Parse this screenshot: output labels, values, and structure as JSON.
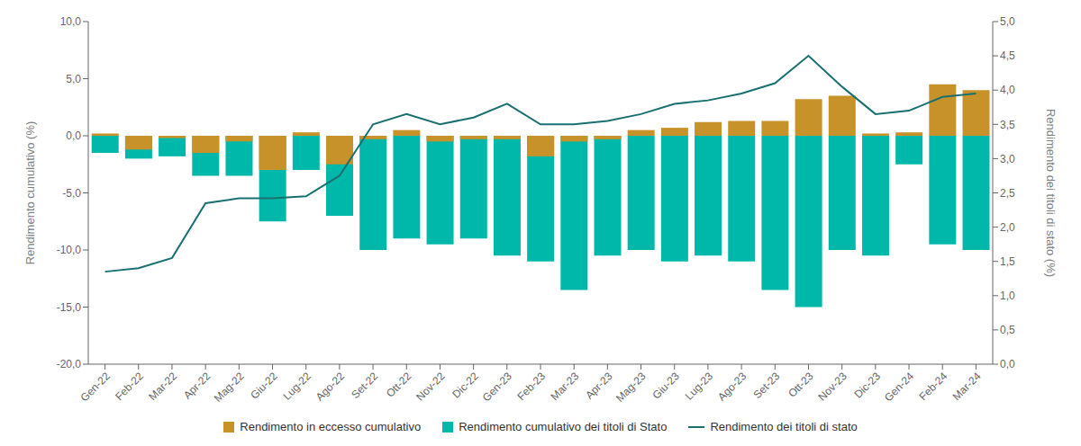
{
  "chart_data": {
    "type": "bar",
    "categories": [
      "Gen-22",
      "Feb-22",
      "Mar-22",
      "Apr-22",
      "Mag-22",
      "Giu-22",
      "Lug-22",
      "Ago-22",
      "Set-22",
      "Ott-22",
      "Nov-22",
      "Dic-22",
      "Gen-23",
      "Feb-23",
      "Mar-23",
      "Apr-23",
      "Mag-23",
      "Giu-23",
      "Lug-23",
      "Ago-23",
      "Set-23",
      "Ott-23",
      "Nov-23",
      "Dic-23",
      "Gen-24",
      "Feb-24",
      "Mar-24"
    ],
    "series": [
      {
        "name": "Rendimento in eccesso cumulativo",
        "type": "bar",
        "color": "#C8922A",
        "values": [
          0.2,
          -1.2,
          -0.2,
          -1.5,
          -0.5,
          -3.0,
          0.3,
          -2.5,
          -0.3,
          0.5,
          -0.5,
          -0.3,
          -0.3,
          -1.8,
          -0.5,
          -0.3,
          0.5,
          0.7,
          1.2,
          1.3,
          1.3,
          3.2,
          3.5,
          0.2,
          0.3,
          4.5,
          4.0
        ]
      },
      {
        "name": "Rendimento cumulativo dei titoli di Stato",
        "type": "bar",
        "color": "#00B8A9",
        "values": [
          -1.5,
          -2.0,
          -1.8,
          -3.5,
          -3.5,
          -7.5,
          -3.0,
          -7.0,
          -10.0,
          -9.0,
          -9.5,
          -9.0,
          -10.5,
          -11.0,
          -13.5,
          -10.5,
          -10.0,
          -11.0,
          -10.5,
          -11.0,
          -13.5,
          -15.0,
          -10.0,
          -10.5,
          -2.5,
          -9.5,
          -10.0
        ]
      },
      {
        "name": "Rendimento dei titoli di stato",
        "type": "line",
        "axis": "y2",
        "color": "#1A7070",
        "values": [
          1.35,
          1.4,
          1.55,
          2.35,
          2.42,
          2.42,
          2.45,
          2.75,
          3.5,
          3.65,
          3.5,
          3.6,
          3.8,
          3.5,
          3.5,
          3.55,
          3.65,
          3.8,
          3.85,
          3.95,
          4.1,
          4.5,
          4.05,
          3.65,
          3.7,
          3.9,
          3.95
        ]
      }
    ],
    "ylabel": "Rendimento cumulativo (%)",
    "y2label": "Rendimento dei titoli di stato (%)",
    "ylim": [
      -20.0,
      10.0
    ],
    "yticks": [
      {
        "value": -20.0,
        "label": "-20,0"
      },
      {
        "value": -15.0,
        "label": "-15,0"
      },
      {
        "value": -10.0,
        "label": "-10,0"
      },
      {
        "value": -5.0,
        "label": "-5,0"
      },
      {
        "value": 0.0,
        "label": "0,0"
      },
      {
        "value": 5.0,
        "label": "5,0"
      },
      {
        "value": 10.0,
        "label": "10,0"
      }
    ],
    "y2lim": [
      0.0,
      5.0
    ],
    "y2ticks": [
      {
        "value": 0.0,
        "label": "0,0"
      },
      {
        "value": 0.5,
        "label": "0,5"
      },
      {
        "value": 1.0,
        "label": "1,0"
      },
      {
        "value": 1.5,
        "label": "1,5"
      },
      {
        "value": 2.0,
        "label": "2,0"
      },
      {
        "value": 2.5,
        "label": "2,5"
      },
      {
        "value": 3.0,
        "label": "3,0"
      },
      {
        "value": 3.5,
        "label": "3,5"
      },
      {
        "value": 4.0,
        "label": "4,0"
      },
      {
        "value": 4.5,
        "label": "4,5"
      },
      {
        "value": 5.0,
        "label": "5,0"
      }
    ],
    "grid": false,
    "legend": "bottom"
  }
}
